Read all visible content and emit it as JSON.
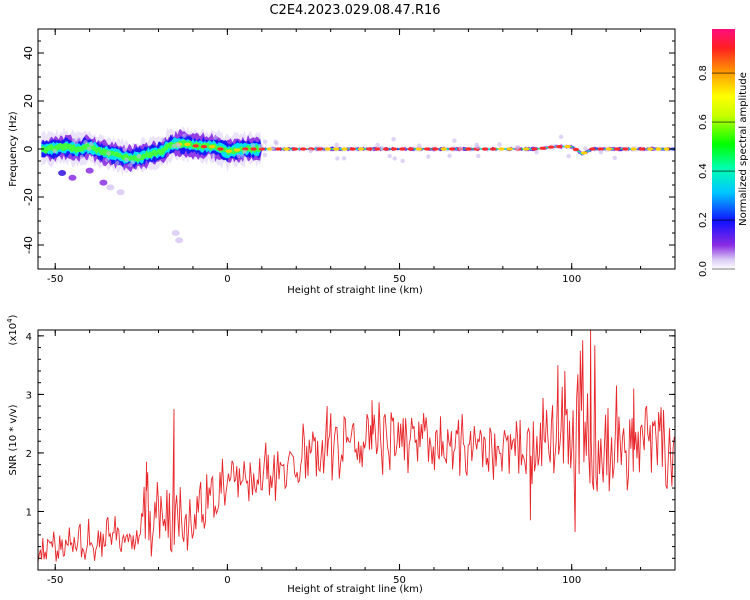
{
  "figure_title": "C2E4.2023.029.08.47.R16",
  "colorbar": {
    "label": "Normalized spectral amplitude",
    "ticks": [
      "0.0",
      "0.2",
      "0.4",
      "0.6",
      "0.8"
    ],
    "tick_values": [
      0.0,
      0.2,
      0.4,
      0.6,
      0.8
    ],
    "range": [
      0,
      0.98
    ]
  },
  "chart_data": [
    {
      "type": "heatmap",
      "title": "",
      "xlabel": "Height of straight line (km)",
      "ylabel": "Frequency (Hz)",
      "xlim": [
        -55,
        130
      ],
      "ylim": [
        -50,
        50
      ],
      "xticks": [
        "-50",
        "0",
        "50",
        "100"
      ],
      "xtick_values": [
        -50,
        0,
        50,
        100
      ],
      "yticks": [
        "40",
        "20",
        "0",
        "-20",
        "-40"
      ],
      "ytick_values": [
        40,
        20,
        0,
        -20,
        -40
      ],
      "grid": false,
      "ridge_center_hz": [
        {
          "x": -52,
          "y": 0
        },
        {
          "x": -47,
          "y": 1
        },
        {
          "x": -44,
          "y": 0
        },
        {
          "x": -40,
          "y": 1
        },
        {
          "x": -37,
          "y": -1
        },
        {
          "x": -34,
          "y": -2
        },
        {
          "x": -31,
          "y": -3
        },
        {
          "x": -28,
          "y": -4
        },
        {
          "x": -25,
          "y": -3
        },
        {
          "x": -22,
          "y": -2
        },
        {
          "x": -19,
          "y": -1
        },
        {
          "x": -16,
          "y": 2
        },
        {
          "x": -12,
          "y": 2
        },
        {
          "x": -8,
          "y": 1
        },
        {
          "x": -4,
          "y": 1
        },
        {
          "x": 0,
          "y": -1
        },
        {
          "x": 5,
          "y": 0
        },
        {
          "x": 20,
          "y": 0
        },
        {
          "x": 50,
          "y": 0
        },
        {
          "x": 80,
          "y": 0
        },
        {
          "x": 90,
          "y": 0
        },
        {
          "x": 95,
          "y": 1
        },
        {
          "x": 100,
          "y": 1
        },
        {
          "x": 103,
          "y": -2
        },
        {
          "x": 106,
          "y": 0
        },
        {
          "x": 130,
          "y": 0
        }
      ],
      "scattered_points": [
        {
          "x": -48,
          "y": -10,
          "amp": 0.25
        },
        {
          "x": -45,
          "y": -12,
          "amp": 0.2
        },
        {
          "x": -40,
          "y": -9,
          "amp": 0.15
        },
        {
          "x": -36,
          "y": -14,
          "amp": 0.12
        },
        {
          "x": -34,
          "y": -16,
          "amp": 0.1
        },
        {
          "x": -31,
          "y": -18,
          "amp": 0.1
        },
        {
          "x": -15,
          "y": -35,
          "amp": 0.05
        },
        {
          "x": -14,
          "y": -38,
          "amp": 0.05
        }
      ],
      "peak_amplitude": 0.98
    },
    {
      "type": "line",
      "title": "",
      "xlabel": "Height of straight line (km)",
      "ylabel": "SNR (10 * v/v)",
      "y_multiplier": "(x10",
      "y_multiplier_exp": "4",
      "y_multiplier_close": ")",
      "xlim": [
        -55,
        130
      ],
      "ylim": [
        0,
        4.1
      ],
      "xticks": [
        "-50",
        "0",
        "50",
        "100"
      ],
      "xtick_values": [
        -50,
        0,
        50,
        100
      ],
      "yticks": [
        "1",
        "2",
        "3",
        "4"
      ],
      "ytick_values": [
        1,
        2,
        3,
        4
      ],
      "grid": false,
      "color": "#e8262a",
      "envelope": [
        {
          "x": -55,
          "lo": 0.05,
          "hi": 0.65,
          "mid": 0.35
        },
        {
          "x": -45,
          "lo": 0.1,
          "hi": 0.8,
          "mid": 0.45
        },
        {
          "x": -35,
          "lo": 0.15,
          "hi": 1.0,
          "mid": 0.55
        },
        {
          "x": -27,
          "lo": 0.25,
          "hi": 0.8,
          "mid": 0.5
        },
        {
          "x": -23,
          "lo": 0.2,
          "hi": 1.8,
          "mid": 0.8
        },
        {
          "x": -19,
          "lo": 0.3,
          "hi": 1.6,
          "mid": 0.8
        },
        {
          "x": -15,
          "lo": 0.1,
          "hi": 2.7,
          "mid": 1.0
        },
        {
          "x": -11,
          "lo": 0.1,
          "hi": 1.4,
          "mid": 0.75
        },
        {
          "x": -5,
          "lo": 0.8,
          "hi": 1.9,
          "mid": 1.3
        },
        {
          "x": 5,
          "lo": 1.0,
          "hi": 2.0,
          "mid": 1.5
        },
        {
          "x": 15,
          "lo": 1.2,
          "hi": 2.3,
          "mid": 1.75
        },
        {
          "x": 25,
          "lo": 1.4,
          "hi": 2.8,
          "mid": 2.0
        },
        {
          "x": 35,
          "lo": 1.6,
          "hi": 2.9,
          "mid": 2.2
        },
        {
          "x": 45,
          "lo": 1.6,
          "hi": 2.9,
          "mid": 2.3
        },
        {
          "x": 55,
          "lo": 1.5,
          "hi": 2.8,
          "mid": 2.2
        },
        {
          "x": 65,
          "lo": 1.6,
          "hi": 2.7,
          "mid": 2.1
        },
        {
          "x": 75,
          "lo": 1.5,
          "hi": 2.6,
          "mid": 2.1
        },
        {
          "x": 85,
          "lo": 1.2,
          "hi": 2.6,
          "mid": 2.0
        },
        {
          "x": 95,
          "lo": 1.0,
          "hi": 3.5,
          "mid": 2.2
        },
        {
          "x": 105,
          "lo": 1.2,
          "hi": 4.1,
          "mid": 2.2
        },
        {
          "x": 115,
          "lo": 1.3,
          "hi": 3.0,
          "mid": 2.1
        },
        {
          "x": 125,
          "lo": 1.4,
          "hi": 2.9,
          "mid": 2.1
        },
        {
          "x": 130,
          "lo": 1.3,
          "hi": 3.0,
          "mid": 2.2
        }
      ],
      "spikes": [
        {
          "x": -15.5,
          "y": 2.75
        },
        {
          "x": -23.5,
          "y": 1.85
        },
        {
          "x": 29,
          "y": 2.8
        },
        {
          "x": 42,
          "y": 2.9
        },
        {
          "x": 96,
          "y": 3.5
        },
        {
          "x": 98,
          "y": 3.4
        },
        {
          "x": 105.5,
          "y": 4.1
        },
        {
          "x": 118,
          "y": 3.1
        },
        {
          "x": 88,
          "y": 0.85
        },
        {
          "x": 101,
          "y": 0.65
        }
      ]
    }
  ]
}
